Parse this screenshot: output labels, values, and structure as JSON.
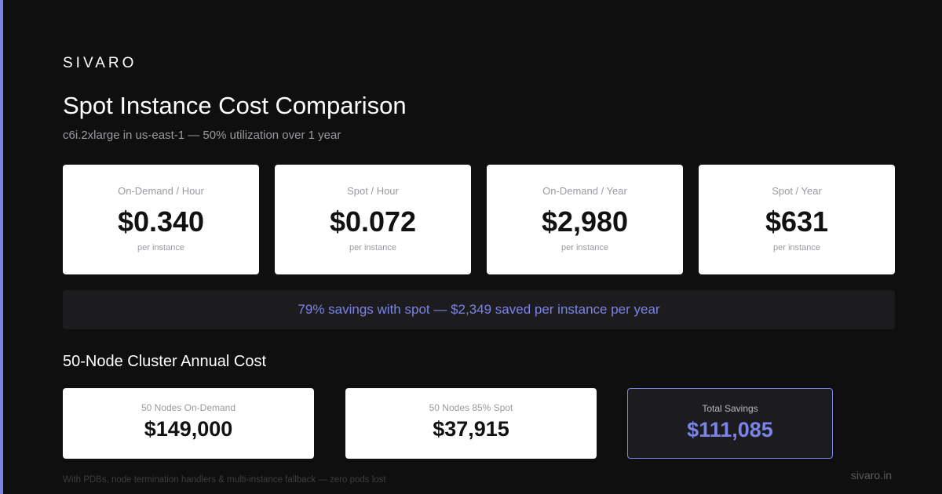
{
  "brand": {
    "name": "SIVARO",
    "accent_color": "#7b83e6",
    "background_color": "#0f0f0f"
  },
  "header": {
    "title": "Spot Instance Cost Comparison",
    "subtitle": "c6i.2xlarge in us-east-1 — 50% utilization over 1 year"
  },
  "per_instance_cards": [
    {
      "label": "On-Demand / Hour",
      "value": "$0.340",
      "sub": "per instance"
    },
    {
      "label": "Spot / Hour",
      "value": "$0.072",
      "sub": "per instance"
    },
    {
      "label": "On-Demand / Year",
      "value": "$2,980",
      "sub": "per instance"
    },
    {
      "label": "Spot / Year",
      "value": "$631",
      "sub": "per instance"
    }
  ],
  "savings_banner": {
    "text": "79% savings with spot — $2,349 saved per instance per year"
  },
  "cluster": {
    "section_title": "50-Node Cluster Annual Cost",
    "cards": [
      {
        "label": "50 Nodes On-Demand",
        "value": "$149,000"
      },
      {
        "label": "50 Nodes 85% Spot",
        "value": "$37,915"
      },
      {
        "label": "Total Savings",
        "value": "$111,085"
      }
    ]
  },
  "footer": {
    "note": "With PDBs, node termination handlers & multi-instance fallback — zero pods lost",
    "site": "sivaro.in"
  }
}
